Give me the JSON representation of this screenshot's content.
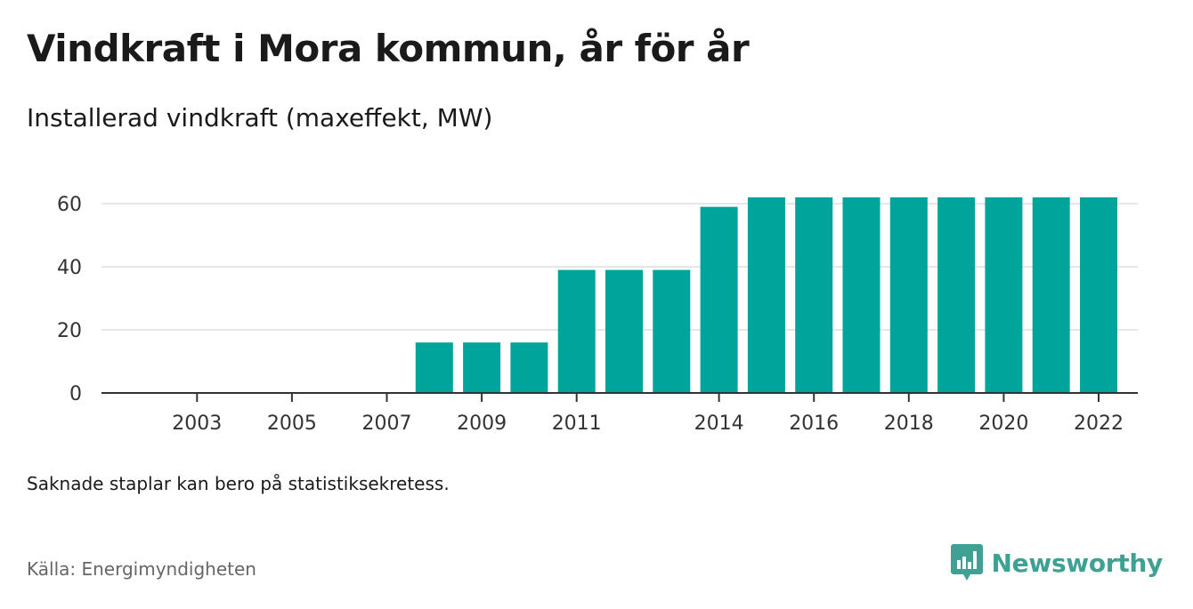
{
  "header": {
    "title": "Vindkraft i Mora kommun, år för år",
    "subtitle": "Installerad vindkraft (maxeffekt, MW)"
  },
  "footer": {
    "note": "Saknade staplar kan bero på statistiksekretess.",
    "source": "Källa: Energimyndigheten",
    "brand": "Newsworthy",
    "brand_icon": "newsworthy-logo-icon"
  },
  "colors": {
    "bar": "#00a49a",
    "grid": "#dddddd",
    "axis": "#333333",
    "brand": "#3fa094"
  },
  "chart_data": {
    "type": "bar",
    "title": "Vindkraft i Mora kommun, år för år",
    "subtitle": "Installerad vindkraft (maxeffekt, MW)",
    "categories": [
      "2002",
      "2003",
      "2004",
      "2005",
      "2006",
      "2007",
      "2008",
      "2009",
      "2010",
      "2011",
      "2012",
      "2013",
      "2014",
      "2015",
      "2016",
      "2017",
      "2018",
      "2019",
      "2020",
      "2021",
      "2022"
    ],
    "values": [
      0,
      0,
      0,
      0,
      0,
      0,
      16,
      16,
      16,
      39,
      39,
      39,
      59,
      62,
      62,
      62,
      62,
      62,
      62,
      62,
      62
    ],
    "x_tick_labels": [
      "2003",
      "2005",
      "2007",
      "2009",
      "2011",
      "2014",
      "2016",
      "2018",
      "2020",
      "2022"
    ],
    "y_ticks": [
      0,
      20,
      40,
      60
    ],
    "ylim": [
      0,
      62
    ],
    "xlabel": "",
    "ylabel": "",
    "grid": true,
    "legend": "none"
  }
}
